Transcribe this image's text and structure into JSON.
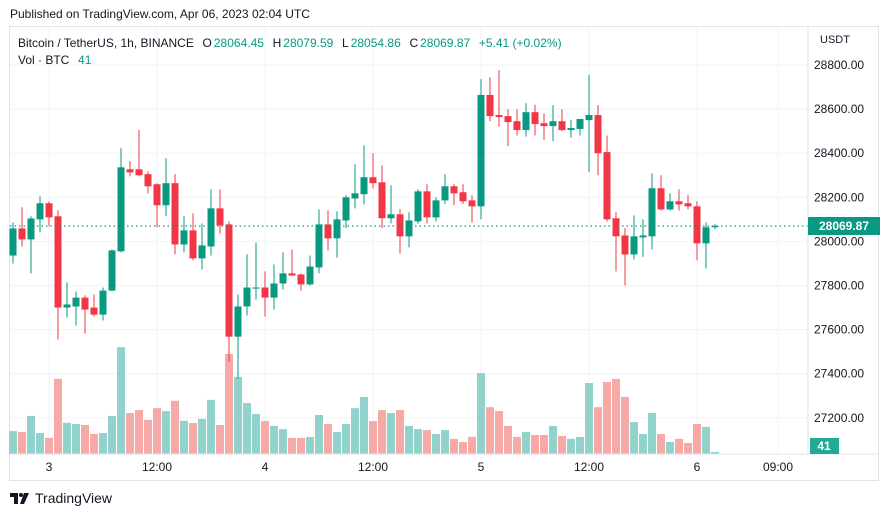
{
  "header": {
    "published": "Published on TradingView.com, Apr 06, 2023 02:04 UTC"
  },
  "legend": {
    "symbol": "Bitcoin / TetherUS, 1h, BINANCE",
    "open_label": "O",
    "open": "28064.45",
    "high_label": "H",
    "high": "28079.59",
    "low_label": "L",
    "low": "28054.86",
    "close_label": "C",
    "close": "28069.87",
    "change": "+5.41 (+0.02%)",
    "vol_label": "Vol · BTC",
    "vol": "41"
  },
  "price_axis": {
    "currency": "USDT",
    "ticks": [
      "28800.00",
      "28600.00",
      "28400.00",
      "28200.00",
      "28000.00",
      "27800.00",
      "27600.00",
      "27400.00",
      "27200.00"
    ],
    "last_price_label": "28069.87",
    "last_volume_label": "41"
  },
  "time_axis": {
    "labels": [
      {
        "text": "3",
        "index": 4
      },
      {
        "text": "12:00",
        "index": 16
      },
      {
        "text": "4",
        "index": 28
      },
      {
        "text": "12:00",
        "index": 40
      },
      {
        "text": "5",
        "index": 52
      },
      {
        "text": "12:00",
        "index": 64
      },
      {
        "text": "6",
        "index": 76
      },
      {
        "text": "09:00",
        "index": 85
      }
    ]
  },
  "colors": {
    "up": "#089981",
    "down": "#f23645",
    "up_vol": "#92d2cc",
    "down_vol": "#f7a9a7",
    "grid": "#f0f3fa",
    "last": "#22ab94"
  },
  "brand": {
    "name": "TradingView"
  },
  "chart_data": {
    "type": "candlestick",
    "title": "Bitcoin / TetherUS, 1h, BINANCE",
    "ylabel": "USDT",
    "ylim": [
      27000,
      28900
    ],
    "last_price": 28069.87,
    "columns": [
      "open",
      "high",
      "low",
      "close",
      "volume"
    ],
    "candles": [
      [
        27936,
        28086,
        27900,
        28059,
        470
      ],
      [
        28059,
        28155,
        27977,
        28009,
        450
      ],
      [
        28009,
        28114,
        27855,
        28104,
        780
      ],
      [
        28100,
        28205,
        28041,
        28173,
        430
      ],
      [
        28173,
        28182,
        28068,
        28109,
        330
      ],
      [
        28114,
        28141,
        27555,
        27700,
        1540
      ],
      [
        27700,
        27814,
        27655,
        27714,
        640
      ],
      [
        27705,
        27773,
        27618,
        27745,
        615
      ],
      [
        27745,
        27755,
        27582,
        27691,
        595
      ],
      [
        27700,
        27759,
        27659,
        27668,
        410
      ],
      [
        27668,
        27791,
        27641,
        27777,
        430
      ],
      [
        27777,
        27964,
        27773,
        27959,
        780
      ],
      [
        27955,
        28423,
        27950,
        28336,
        2190
      ],
      [
        28327,
        28364,
        28295,
        28313,
        840
      ],
      [
        28327,
        28505,
        28295,
        28300,
        900
      ],
      [
        28305,
        28318,
        28218,
        28250,
        700
      ],
      [
        28259,
        28264,
        28064,
        28164,
        940
      ],
      [
        28164,
        28377,
        28114,
        28264,
        880
      ],
      [
        28264,
        28305,
        27941,
        27986,
        1090
      ],
      [
        27986,
        28114,
        27950,
        28050,
        680
      ],
      [
        28050,
        28127,
        27914,
        27923,
        635
      ],
      [
        27923,
        28082,
        27873,
        27982,
        720
      ],
      [
        27977,
        28236,
        27936,
        28150,
        1110
      ],
      [
        28150,
        28236,
        28036,
        28073,
        595
      ],
      [
        28077,
        28091,
        27455,
        27568,
        2050
      ],
      [
        27568,
        27759,
        27377,
        27705,
        1580
      ],
      [
        27705,
        27941,
        27664,
        27791,
        1045
      ],
      [
        27786,
        27995,
        27736,
        27791,
        820
      ],
      [
        27791,
        27864,
        27659,
        27745,
        675
      ],
      [
        27745,
        27895,
        27691,
        27809,
        575
      ],
      [
        27809,
        27950,
        27782,
        27855,
        510
      ],
      [
        27855,
        27964,
        27845,
        27845,
        330
      ],
      [
        27850,
        27855,
        27777,
        27805,
        330
      ],
      [
        27805,
        27936,
        27800,
        27886,
        350
      ],
      [
        27882,
        28145,
        27855,
        28077,
        800
      ],
      [
        28077,
        28141,
        27959,
        28014,
        615
      ],
      [
        28014,
        28136,
        27927,
        28100,
        450
      ],
      [
        28095,
        28209,
        28060,
        28200,
        615
      ],
      [
        28195,
        28350,
        28150,
        28218,
        940
      ],
      [
        28214,
        28436,
        28168,
        28291,
        1170
      ],
      [
        28291,
        28400,
        28240,
        28264,
        675
      ],
      [
        28268,
        28345,
        28060,
        28105,
        900
      ],
      [
        28105,
        28255,
        28082,
        28123,
        840
      ],
      [
        28123,
        28145,
        27945,
        28023,
        900
      ],
      [
        28023,
        28132,
        27973,
        28095,
        575
      ],
      [
        28091,
        28236,
        28080,
        28227,
        510
      ],
      [
        28227,
        28259,
        28082,
        28109,
        490
      ],
      [
        28109,
        28200,
        28090,
        28186,
        410
      ],
      [
        28186,
        28305,
        28170,
        28250,
        490
      ],
      [
        28250,
        28260,
        28164,
        28218,
        310
      ],
      [
        28223,
        28259,
        28170,
        28182,
        245
      ],
      [
        28186,
        28209,
        28086,
        28159,
        350
      ],
      [
        28159,
        28736,
        28100,
        28664,
        1660
      ],
      [
        28664,
        28745,
        28545,
        28568,
        960
      ],
      [
        28573,
        28777,
        28520,
        28564,
        880
      ],
      [
        28568,
        28600,
        28432,
        28541,
        575
      ],
      [
        28545,
        28600,
        28480,
        28505,
        350
      ],
      [
        28505,
        28627,
        28475,
        28586,
        450
      ],
      [
        28586,
        28620,
        28480,
        28532,
        390
      ],
      [
        28536,
        28580,
        28460,
        28523,
        390
      ],
      [
        28523,
        28618,
        28455,
        28545,
        575
      ],
      [
        28545,
        28600,
        28500,
        28505,
        370
      ],
      [
        28505,
        28550,
        28470,
        28514,
        310
      ],
      [
        28510,
        28555,
        28480,
        28555,
        350
      ],
      [
        28550,
        28755,
        28314,
        28573,
        1455
      ],
      [
        28573,
        28618,
        28300,
        28400,
        960
      ],
      [
        28405,
        28480,
        28090,
        28100,
        1475
      ],
      [
        28105,
        28132,
        27864,
        28023,
        1540
      ],
      [
        28027,
        28060,
        27800,
        27941,
        1170
      ],
      [
        27941,
        28118,
        27918,
        28023,
        655
      ],
      [
        28018,
        28100,
        27930,
        28027,
        410
      ],
      [
        28023,
        28309,
        27964,
        28241,
        840
      ],
      [
        28241,
        28300,
        28140,
        28145,
        410
      ],
      [
        28145,
        28218,
        28140,
        28182,
        245
      ],
      [
        28182,
        28236,
        28140,
        28168,
        310
      ],
      [
        28173,
        28210,
        28145,
        28159,
        225
      ],
      [
        28159,
        28182,
        27914,
        27991,
        615
      ],
      [
        27991,
        28086,
        27877,
        28064,
        555
      ],
      [
        28064.45,
        28079.59,
        28054.86,
        28069.87,
        41
      ]
    ]
  }
}
